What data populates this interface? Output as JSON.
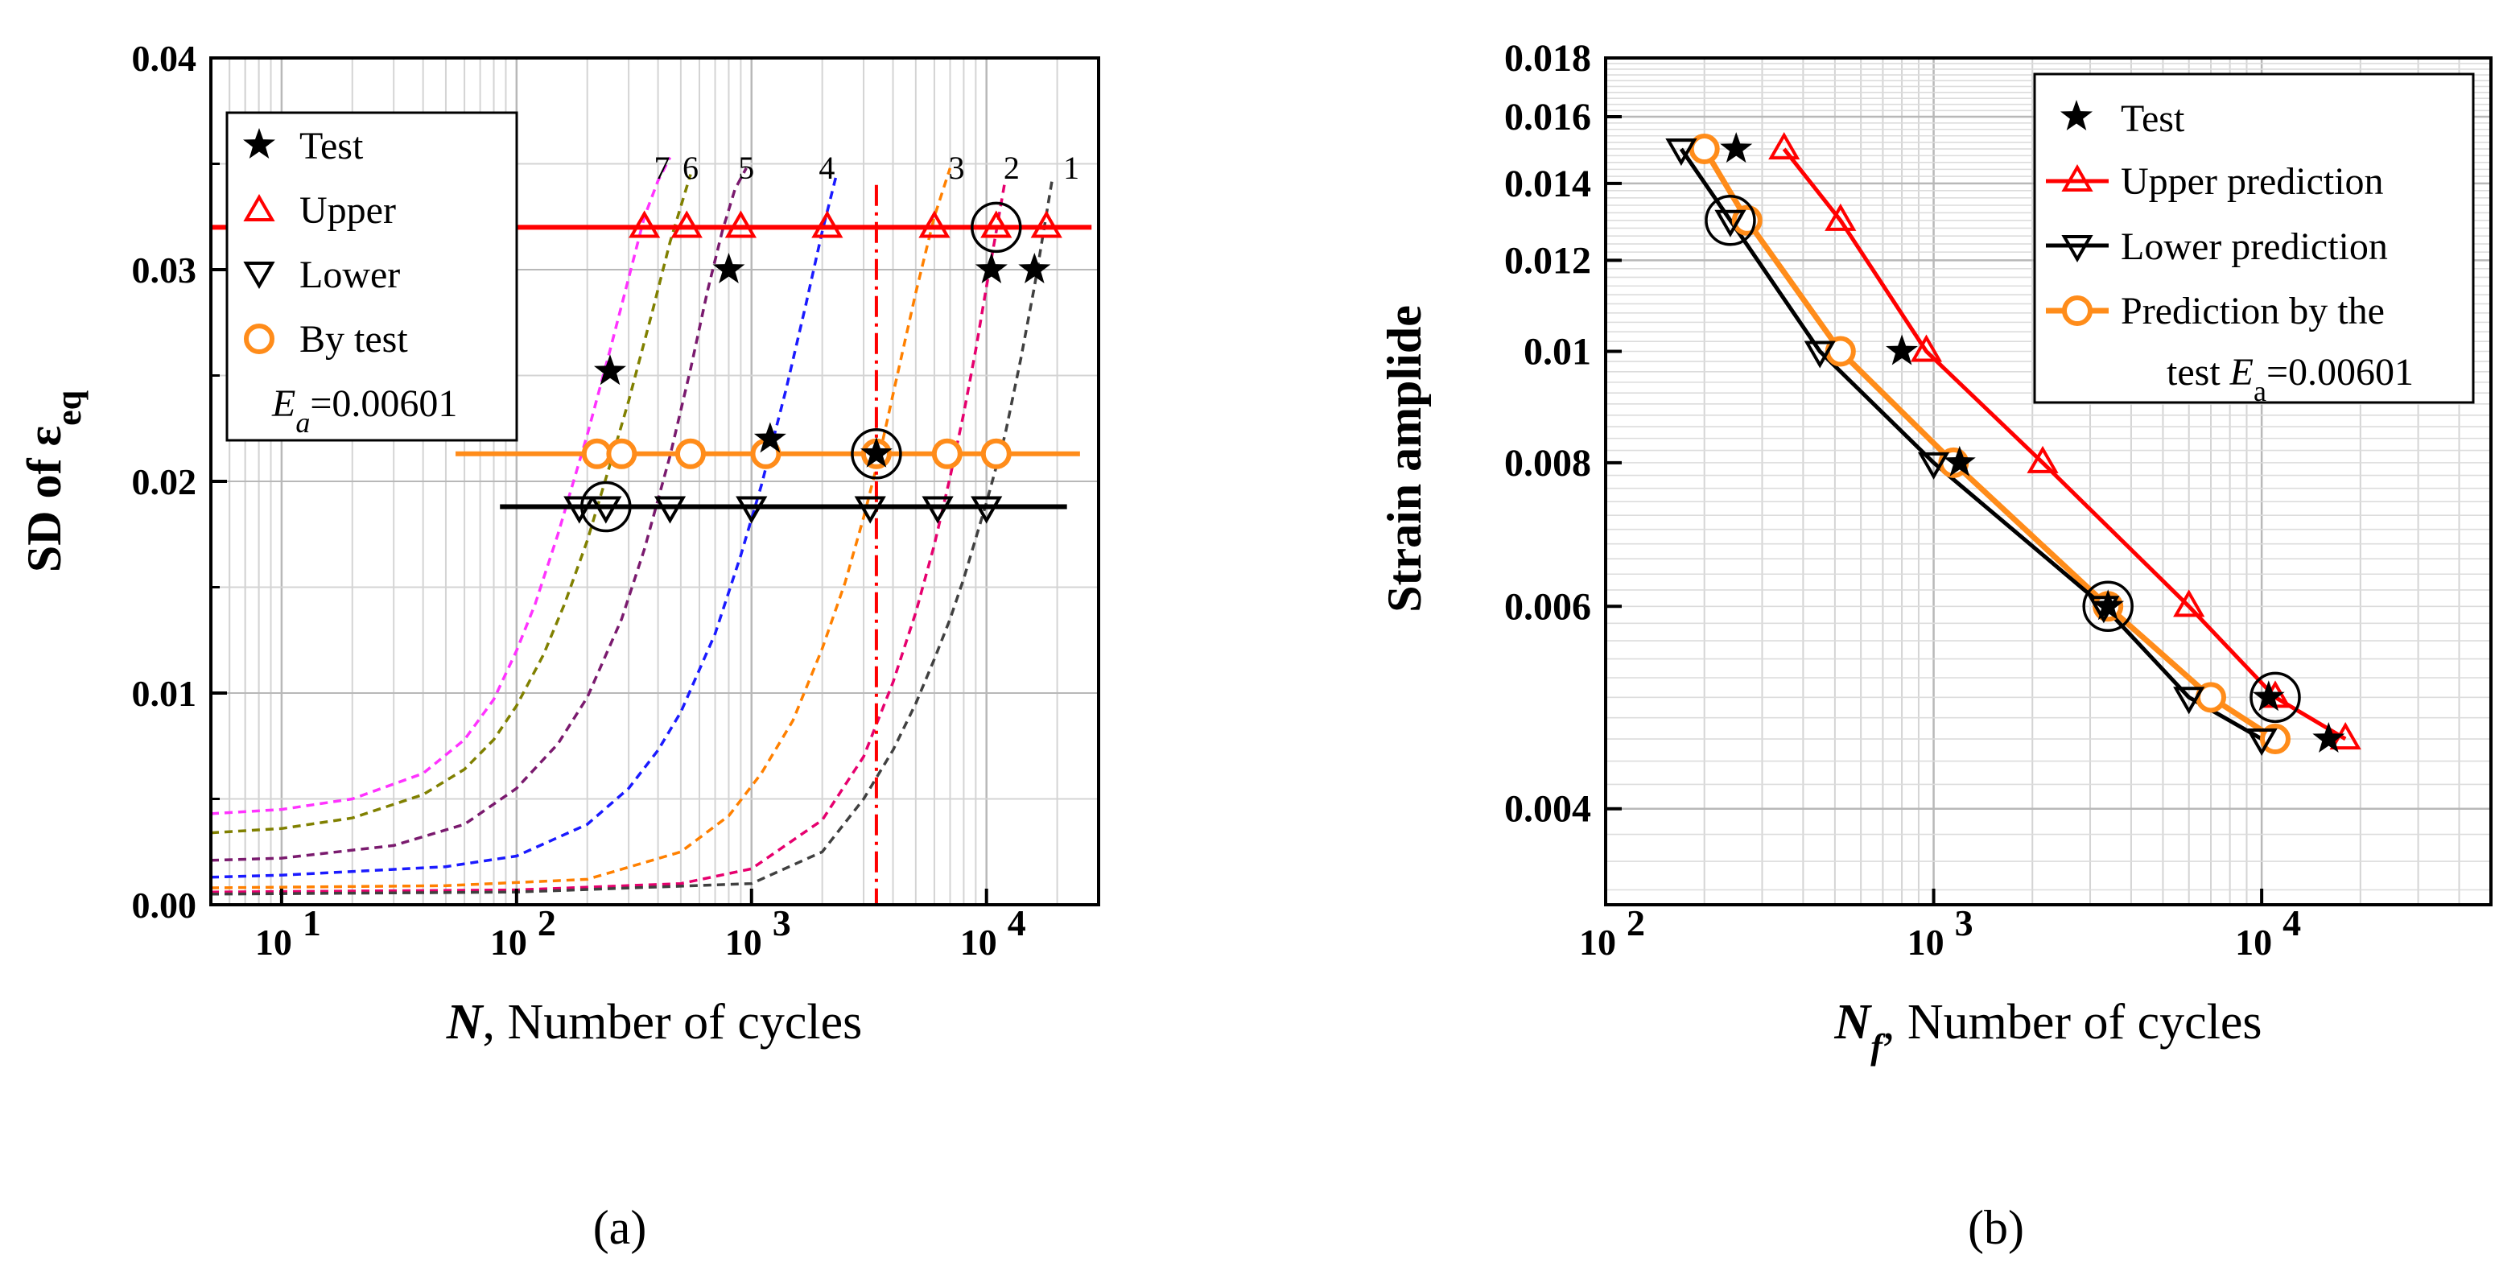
{
  "panel_a": {
    "label": "(a)",
    "ylabel": "SD of ε",
    "ylabel_sub": "eq",
    "xlabel_italic": "N",
    "xlabel_rest": ", Number of cycles",
    "legend": {
      "test": "Test",
      "upper": "Upper",
      "lower": "Lower",
      "bytest": "By test",
      "ea_italic": "E",
      "ea_sub": "a",
      "ea_value": "=0.00601"
    },
    "curve_labels": [
      "7",
      "6",
      "5",
      "4",
      "3",
      "2",
      "1"
    ]
  },
  "panel_b": {
    "label": "(b)",
    "ylabel": "Strain amplide",
    "xlabel_italic": "N",
    "xlabel_sub": "f",
    "xlabel_rest": ", Number of cycles",
    "legend": {
      "test": "Test",
      "upper": "Upper prediction",
      "lower": "Lower prediction",
      "bytest_line1": "Prediction by the",
      "bytest_line2_pre": "test ",
      "bytest_line2_italic": "E",
      "bytest_line2_sub": "a",
      "bytest_line2_post": "=0.00601"
    }
  },
  "colors": {
    "test": "#000000",
    "upper": "#ff0000",
    "lower": "#000000",
    "bytest": "#ff8c1a",
    "criterion": "#ff0000"
  },
  "chart_data": [
    {
      "panel": "a",
      "type": "scatter",
      "x_scale": "log",
      "xlim": [
        5,
        30000
      ],
      "ylim": [
        0,
        0.04
      ],
      "x_ticks": [
        10,
        100,
        1000,
        10000
      ],
      "x_tick_labels": [
        "10",
        "10",
        "10",
        "10"
      ],
      "x_tick_exps": [
        "1",
        "2",
        "3",
        "4"
      ],
      "y_ticks": [
        0,
        0.01,
        0.02,
        0.03,
        0.04
      ],
      "y_tick_labels": [
        "0.00",
        "0.01",
        "0.02",
        "0.03",
        "0.04"
      ],
      "grid": true,
      "legend_position": "top-left",
      "curves": [
        {
          "label": "7",
          "color": "#ff33ff",
          "N": [
            5,
            10,
            20,
            40,
            60,
            80,
            100,
            120,
            150,
            200,
            250,
            300,
            350,
            400,
            450
          ],
          "sd": [
            0.0043,
            0.0045,
            0.005,
            0.0062,
            0.0078,
            0.0097,
            0.012,
            0.0142,
            0.0175,
            0.0222,
            0.0262,
            0.0296,
            0.0325,
            0.0342,
            0.0353
          ]
        },
        {
          "label": "6",
          "color": "#808000",
          "N": [
            5,
            10,
            20,
            40,
            60,
            80,
            100,
            130,
            160,
            200,
            250,
            300,
            380,
            450,
            550
          ],
          "sd": [
            0.0034,
            0.0036,
            0.0041,
            0.0052,
            0.0064,
            0.0078,
            0.0094,
            0.0118,
            0.0142,
            0.0172,
            0.0208,
            0.0238,
            0.0281,
            0.0313,
            0.0345
          ]
        },
        {
          "label": "5",
          "color": "#7a1a6e",
          "N": [
            5,
            10,
            30,
            60,
            100,
            150,
            200,
            280,
            350,
            450,
            550,
            650,
            750,
            850,
            950
          ],
          "sd": [
            0.0021,
            0.0022,
            0.0028,
            0.0038,
            0.0055,
            0.0076,
            0.0098,
            0.0135,
            0.0168,
            0.0212,
            0.0253,
            0.029,
            0.0318,
            0.0338,
            0.0348
          ]
        },
        {
          "label": "4",
          "color": "#1a1aff",
          "N": [
            5,
            10,
            50,
            100,
            200,
            300,
            400,
            500,
            700,
            900,
            1100,
            1400,
            1700,
            2000,
            2300
          ],
          "sd": [
            0.0013,
            0.0014,
            0.0018,
            0.0023,
            0.0038,
            0.0055,
            0.0073,
            0.0091,
            0.0128,
            0.0165,
            0.0198,
            0.0243,
            0.0283,
            0.0318,
            0.0345
          ]
        },
        {
          "label": "3",
          "color": "#ff8000",
          "N": [
            5,
            50,
            200,
            500,
            800,
            1100,
            1500,
            2000,
            2500,
            3000,
            3500,
            4000,
            5000,
            6000,
            7000
          ],
          "sd": [
            0.0008,
            0.0009,
            0.0012,
            0.0025,
            0.0042,
            0.0062,
            0.0087,
            0.0121,
            0.0152,
            0.0183,
            0.0212,
            0.0241,
            0.0289,
            0.0325,
            0.0348
          ]
        },
        {
          "label": "2",
          "color": "#e6006e",
          "N": [
            5,
            100,
            500,
            1000,
            2000,
            3000,
            4000,
            5000,
            6000,
            7000,
            8000,
            9000,
            10000,
            11000,
            12000
          ],
          "sd": [
            0.0006,
            0.0007,
            0.001,
            0.0017,
            0.004,
            0.007,
            0.0105,
            0.0138,
            0.017,
            0.0202,
            0.0232,
            0.0262,
            0.0292,
            0.0318,
            0.0342
          ]
        },
        {
          "label": "1",
          "color": "#404040",
          "N": [
            5,
            100,
            1000,
            2000,
            3000,
            4000,
            5000,
            6000,
            7000,
            8000,
            10000,
            12000,
            14000,
            16000,
            19000
          ],
          "sd": [
            0.0005,
            0.0006,
            0.001,
            0.0025,
            0.005,
            0.0073,
            0.0095,
            0.0116,
            0.0135,
            0.0154,
            0.019,
            0.0222,
            0.0258,
            0.0292,
            0.0342
          ]
        }
      ],
      "criterion_x": 3400,
      "series": [
        {
          "name": "Upper",
          "marker": "triangle-up",
          "y": 0.032,
          "line_x": [
            5,
            28000
          ],
          "x": [
            350,
            530,
            900,
            2100,
            6000,
            11000,
            18000
          ],
          "circled_x": 11000
        },
        {
          "name": "Lower",
          "marker": "triangle-down",
          "y": 0.0188,
          "line_x": [
            85,
            22000
          ],
          "x": [
            185,
            240,
            450,
            1000,
            3200,
            6200,
            10000
          ],
          "circled_x": 240
        },
        {
          "name": "By test",
          "marker": "circle",
          "y": 0.0213,
          "line_x": [
            55,
            25000
          ],
          "x": [
            220,
            280,
            550,
            1150,
            3400,
            6800,
            11000
          ],
          "circled_x": 3400
        },
        {
          "name": "Test",
          "marker": "star",
          "x": [
            250,
            800,
            1200,
            3400,
            10500,
            16000
          ],
          "y": [
            0.0252,
            0.03,
            0.022,
            0.0213,
            0.03,
            0.03
          ]
        }
      ]
    },
    {
      "panel": "b",
      "type": "line",
      "x_scale": "log",
      "y_scale": "log",
      "xlim": [
        100,
        50000
      ],
      "ylim": [
        0.0033,
        0.018
      ],
      "x_ticks": [
        100,
        1000,
        10000
      ],
      "x_tick_labels": [
        "10",
        "10",
        "10"
      ],
      "x_tick_exps": [
        "2",
        "3",
        "4"
      ],
      "y_ticks": [
        0.004,
        0.006,
        0.008,
        0.01,
        0.012,
        0.014,
        0.016,
        0.018
      ],
      "y_tick_labels": [
        "0.004",
        "0.006",
        "0.008",
        "0.01",
        "0.012",
        "0.014",
        "0.016",
        "0.018"
      ],
      "grid": true,
      "legend_position": "top-right",
      "series": [
        {
          "name": "Upper prediction",
          "marker": "triangle-up",
          "x": [
            350,
            520,
            950,
            2150,
            6000,
            11000,
            18000
          ],
          "y": [
            0.015,
            0.013,
            0.01,
            0.008,
            0.006,
            0.005,
            0.0046
          ]
        },
        {
          "name": "Lower prediction",
          "marker": "triangle-down",
          "x": [
            170,
            240,
            450,
            1000,
            3300,
            6000,
            10000
          ],
          "y": [
            0.015,
            0.013,
            0.01,
            0.008,
            0.006,
            0.005,
            0.0046
          ]
        },
        {
          "name": "Prediction by the test Ea=0.00601",
          "marker": "circle",
          "x": [
            200,
            270,
            520,
            1150,
            3400,
            7000,
            11000
          ],
          "y": [
            0.015,
            0.013,
            0.01,
            0.008,
            0.006,
            0.005,
            0.0046
          ]
        },
        {
          "name": "Test",
          "marker": "star",
          "x": [
            250,
            800,
            1200,
            3400,
            10500,
            16000
          ],
          "y": [
            0.015,
            0.01,
            0.008,
            0.006,
            0.005,
            0.0046
          ]
        }
      ],
      "circled": [
        {
          "x": 240,
          "y": 0.013
        },
        {
          "x": 3400,
          "y": 0.006
        },
        {
          "x": 11000,
          "y": 0.005
        }
      ]
    }
  ]
}
